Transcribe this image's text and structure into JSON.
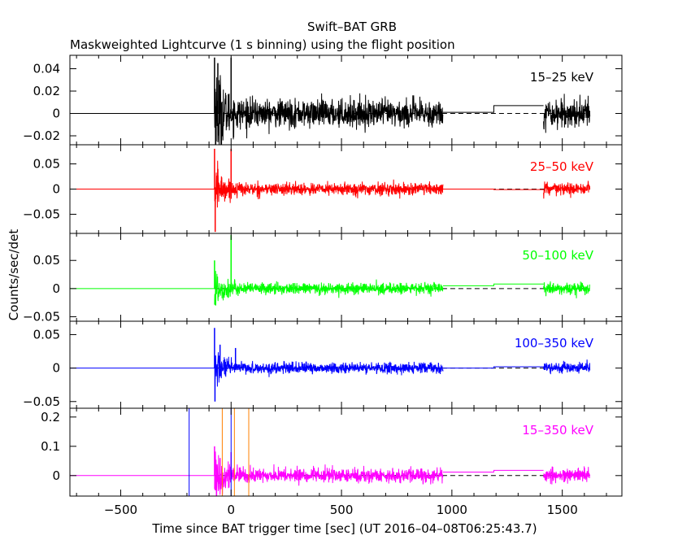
{
  "chart_data": {
    "type": "line",
    "title": "Swift–BAT GRB",
    "subtitle": "Maskweighted Lightcurve (1 s binning) using the flight position",
    "xlabel": "Time since BAT trigger time [sec] (UT 2016–04–08T06:25:43.7)",
    "ylabel": "Counts/sec/det",
    "xlim": [
      -730,
      1770
    ],
    "x_ticks": [
      -500,
      0,
      500,
      1000,
      1500
    ],
    "x_tick_labels": [
      "−500",
      "0",
      "500",
      "1000",
      "1500"
    ],
    "binning_sec": 1,
    "coverage": {
      "pre_burst_flat_until": -75,
      "burst_data": [
        -75,
        960
      ],
      "gap": [
        960,
        1415
      ],
      "post_gap_data": [
        1415,
        1625
      ]
    },
    "panels": [
      {
        "band": "15–25 keV",
        "color": "#000000",
        "ylim": [
          -0.028,
          0.052
        ],
        "y_ticks": [
          -0.02,
          0,
          0.02,
          0.04
        ],
        "y_tick_labels": [
          "−0.02",
          "0",
          "0.02",
          "0.04"
        ],
        "noise_sigma": 0.006,
        "gap_levels": [
          0.001,
          0.007
        ],
        "spikes": [
          {
            "x": -75,
            "y": 0.05
          },
          {
            "x": -68,
            "y": -0.025
          },
          {
            "x": -60,
            "y": 0.045
          },
          {
            "x": 0,
            "y": 0.05
          }
        ]
      },
      {
        "band": "25–50 keV",
        "color": "#ff0000",
        "ylim": [
          -0.088,
          0.088
        ],
        "y_ticks": [
          -0.05,
          0,
          0.05
        ],
        "y_tick_labels": [
          "−0.05",
          "0",
          "0.05"
        ],
        "noise_sigma": 0.006,
        "gap_levels": [
          0.0,
          -0.001
        ],
        "spikes": [
          {
            "x": -75,
            "y": 0.08
          },
          {
            "x": -72,
            "y": -0.085
          },
          {
            "x": -60,
            "y": 0.04
          },
          {
            "x": 0,
            "y": 0.08
          }
        ]
      },
      {
        "band": "50–100 keV",
        "color": "#00ff00",
        "ylim": [
          -0.058,
          0.098
        ],
        "y_ticks": [
          -0.05,
          0,
          0.05
        ],
        "y_tick_labels": [
          "−0.05",
          "0",
          "0.05"
        ],
        "noise_sigma": 0.005,
        "gap_levels": [
          0.005,
          0.008
        ],
        "spikes": [
          {
            "x": -75,
            "y": 0.05
          },
          {
            "x": -70,
            "y": -0.03
          },
          {
            "x": 0,
            "y": 0.095
          }
        ]
      },
      {
        "band": "100–350 keV",
        "color": "#0000ff",
        "ylim": [
          -0.06,
          0.07
        ],
        "y_ticks": [
          -0.05,
          0,
          0.05
        ],
        "y_tick_labels": [
          "−0.05",
          "0",
          "0.05"
        ],
        "noise_sigma": 0.004,
        "gap_levels": [
          0.0,
          0.002
        ],
        "spikes": [
          {
            "x": -75,
            "y": 0.06
          },
          {
            "x": -73,
            "y": -0.05
          },
          {
            "x": -50,
            "y": 0.035
          },
          {
            "x": 20,
            "y": 0.03
          }
        ]
      },
      {
        "band": "15–350 keV",
        "color": "#ff00ff",
        "ylim": [
          -0.07,
          0.23
        ],
        "y_ticks": [
          0,
          0.1,
          0.2
        ],
        "y_tick_labels": [
          "0",
          "0.1",
          "0.2"
        ],
        "noise_sigma": 0.012,
        "gap_levels": [
          0.012,
          0.018
        ],
        "spikes": [
          {
            "x": -75,
            "y": 0.1
          },
          {
            "x": -72,
            "y": -0.05
          },
          {
            "x": -50,
            "y": 0.06
          },
          {
            "x": 0,
            "y": 0.08
          }
        ],
        "markers": [
          {
            "x": -190,
            "color": "#0000ff"
          },
          {
            "x": -40,
            "color": "#ff8000"
          },
          {
            "x": 0,
            "color": "#0000ff"
          },
          {
            "x": 15,
            "color": "#ff8000"
          },
          {
            "x": 80,
            "color": "#ff8000"
          }
        ]
      }
    ]
  }
}
